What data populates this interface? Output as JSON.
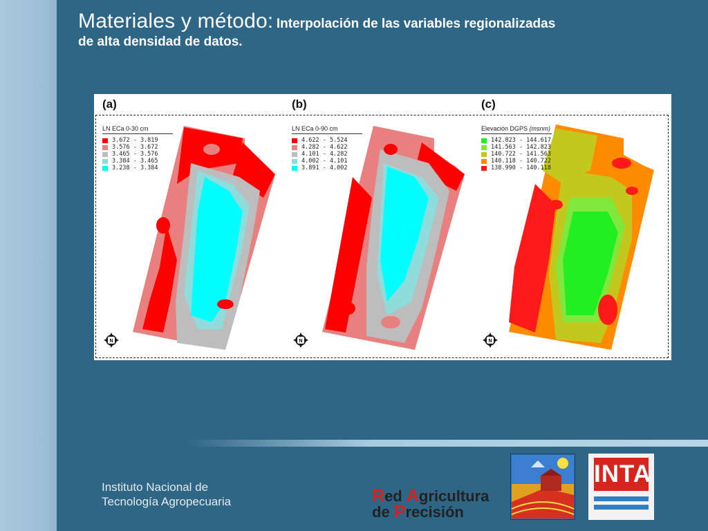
{
  "slide": {
    "title_main": "Materiales y método:",
    "title_sub": "Interpolación de las variables regionalizadas",
    "title_line2": "de alta densidad de datos."
  },
  "figure": {
    "panels": [
      {
        "letter": "(a)",
        "legend_title": "LN ECa 0-30 cm",
        "legend": [
          {
            "range": "3.672 - 3.819",
            "color": "#ff0000"
          },
          {
            "range": "3.576 - 3.672",
            "color": "#e88080"
          },
          {
            "range": "3.465 - 3.576",
            "color": "#bdbdbd"
          },
          {
            "range": "3.384 - 3.465",
            "color": "#8fdcdc"
          },
          {
            "range": "3.238 - 3.384",
            "color": "#00ffff"
          }
        ]
      },
      {
        "letter": "(b)",
        "legend_title": "LN ECa 0-90 cm",
        "legend": [
          {
            "range": "4.622 - 5.524",
            "color": "#ff0000"
          },
          {
            "range": "4.282 - 4.622",
            "color": "#e88080"
          },
          {
            "range": "4.101 - 4.282",
            "color": "#bdbdbd"
          },
          {
            "range": "4.002 - 4.101",
            "color": "#8fdcdc"
          },
          {
            "range": "3.891 - 4.002",
            "color": "#00ffff"
          }
        ]
      },
      {
        "letter": "(c)",
        "legend_title_plain": "Elevación DGPS ",
        "legend_title_italic": "(msnm)",
        "legend": [
          {
            "range": "142.823 - 144.617",
            "color": "#22ee22"
          },
          {
            "range": "141.563 - 142.823",
            "color": "#7fe83a"
          },
          {
            "range": "140.722 - 141.563",
            "color": "#c3c81e"
          },
          {
            "range": "140.118 - 140.722",
            "color": "#ff8c00"
          },
          {
            "range": "138.990 - 140.118",
            "color": "#ff1a1a"
          }
        ]
      }
    ],
    "north_icon": "north-arrow-icon"
  },
  "footer": {
    "org_line1": "Instituto Nacional de",
    "org_line2": "Tecnología Agropecuaria",
    "rap_line1_cap1": "R",
    "rap_line1_rest1": "ed ",
    "rap_line1_cap2": "A",
    "rap_line1_rest2": "gricultura",
    "rap_line2_pre": "de ",
    "rap_line2_cap": "P",
    "rap_line2_rest": "recisión",
    "inta_word": "INTA"
  }
}
